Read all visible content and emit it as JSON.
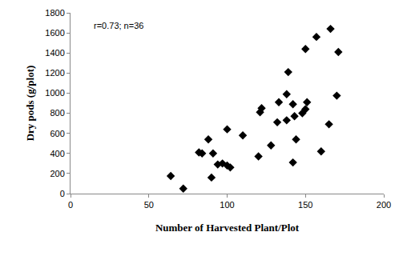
{
  "chart_data": {
    "type": "scatter",
    "x_label": "Number of Harvested Plant/Plot",
    "y_label": "Dry pods (g/plot)",
    "annotations": [
      "r=0.73; n=36"
    ],
    "color": "#000000",
    "marker": "diamond",
    "grid": false,
    "x": [
      64,
      72,
      82,
      84,
      88,
      90,
      91,
      94,
      97,
      100,
      100,
      102,
      110,
      120,
      121,
      122,
      128,
      132,
      133,
      138,
      138,
      139,
      142,
      142,
      143,
      144,
      148,
      150,
      150,
      151,
      157,
      160,
      165,
      166,
      170,
      171
    ],
    "values": [
      175,
      50,
      410,
      400,
      540,
      160,
      400,
      290,
      300,
      640,
      280,
      260,
      580,
      370,
      810,
      850,
      480,
      710,
      910,
      730,
      990,
      1210,
      310,
      890,
      770,
      540,
      800,
      840,
      1440,
      910,
      1560,
      420,
      690,
      1640,
      975,
      1410
    ],
    "xlim": [
      0,
      200
    ],
    "xticks": [
      0,
      50,
      100,
      150,
      200
    ],
    "ylim": [
      0,
      1800
    ],
    "yticks": [
      0,
      200,
      400,
      600,
      800,
      1000,
      1200,
      1400,
      1600,
      1800
    ]
  }
}
